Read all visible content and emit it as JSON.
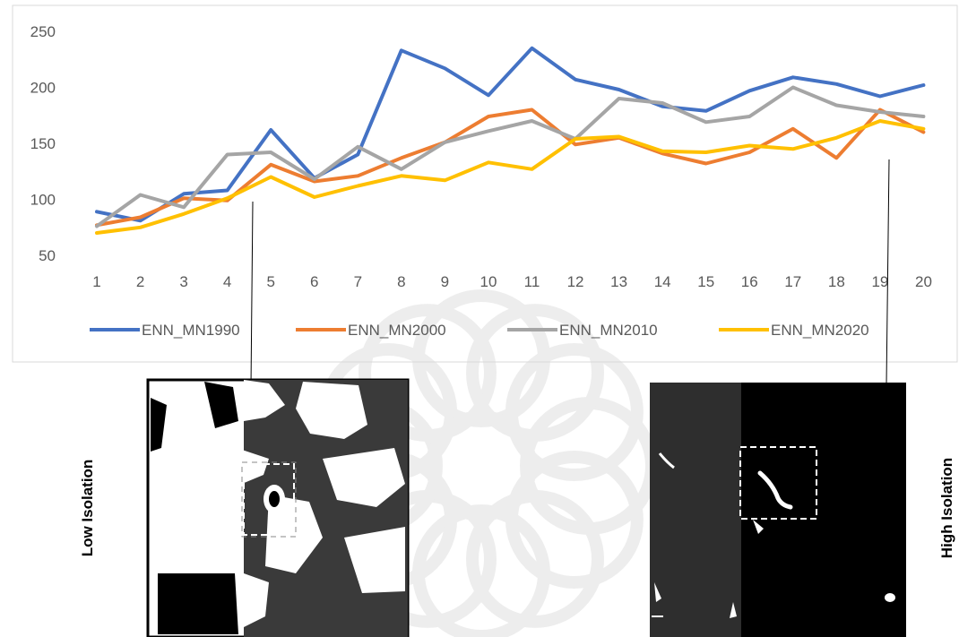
{
  "chart_data": {
    "type": "line",
    "x": [
      1,
      2,
      3,
      4,
      5,
      6,
      7,
      8,
      9,
      10,
      11,
      12,
      13,
      14,
      15,
      16,
      17,
      18,
      19,
      20
    ],
    "ylim": [
      50,
      250
    ],
    "y_ticks": [
      50,
      100,
      150,
      200,
      250
    ],
    "grid": false,
    "legend_position": "bottom",
    "series": [
      {
        "name": "ENN_MN1990",
        "color": "#4472C4",
        "values": [
          89,
          81,
          105,
          108,
          162,
          119,
          140,
          233,
          217,
          193,
          235,
          207,
          198,
          183,
          179,
          197,
          209,
          203,
          192,
          202
        ]
      },
      {
        "name": "ENN_MN2000",
        "color": "#ED7D31",
        "values": [
          77,
          84,
          101,
          99,
          131,
          116,
          121,
          137,
          151,
          174,
          180,
          149,
          155,
          141,
          132,
          142,
          163,
          137,
          180,
          160
        ]
      },
      {
        "name": "ENN_MN2010",
        "color": "#A5A5A5",
        "values": [
          76,
          104,
          93,
          140,
          142,
          118,
          147,
          127,
          151,
          161,
          170,
          154,
          190,
          186,
          169,
          174,
          200,
          184,
          178,
          174
        ]
      },
      {
        "name": "ENN_MN2020",
        "color": "#FFC000",
        "values": [
          70,
          75,
          87,
          101,
          120,
          102,
          112,
          121,
          117,
          133,
          127,
          154,
          156,
          143,
          142,
          148,
          145,
          155,
          170,
          163
        ]
      }
    ]
  },
  "panels": {
    "left_label": "Low Isolation",
    "right_label": "High Isolation"
  }
}
